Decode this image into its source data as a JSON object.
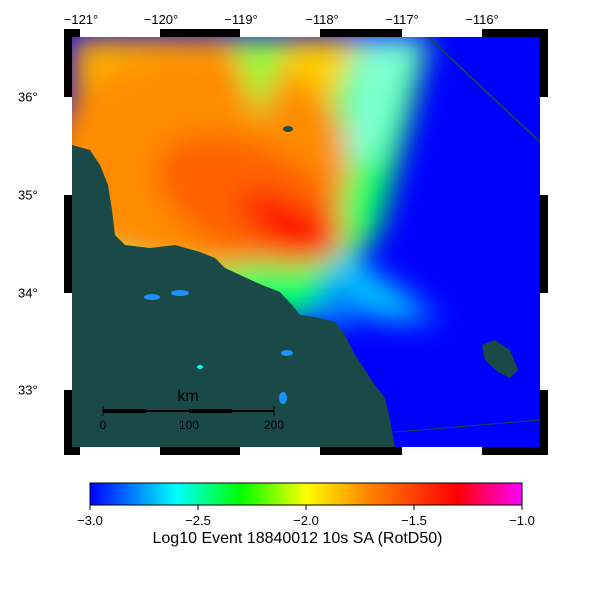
{
  "map": {
    "top_ticks": [
      "−121°",
      "−120°",
      "−119°",
      "−118°",
      "−117°",
      "−116°"
    ],
    "left_ticks": [
      "36°",
      "35°",
      "34°",
      "33°"
    ],
    "colors": {
      "ocean": "#1a4a47",
      "land_low": "#0000ff",
      "land_high": "#ff0000"
    }
  },
  "scale_bar": {
    "unit": "km",
    "labels": [
      "0",
      "100",
      "200"
    ]
  },
  "colorbar": {
    "ticks": [
      "−3.0",
      "−2.5",
      "−2.0",
      "−1.5",
      "−1.0"
    ],
    "title": "Log10 Event 18840012 10s SA (RotD50)",
    "colors": [
      "#0000ff",
      "#00ffff",
      "#00ff00",
      "#ffff00",
      "#ff8000",
      "#ff0000",
      "#ff00ff"
    ]
  }
}
